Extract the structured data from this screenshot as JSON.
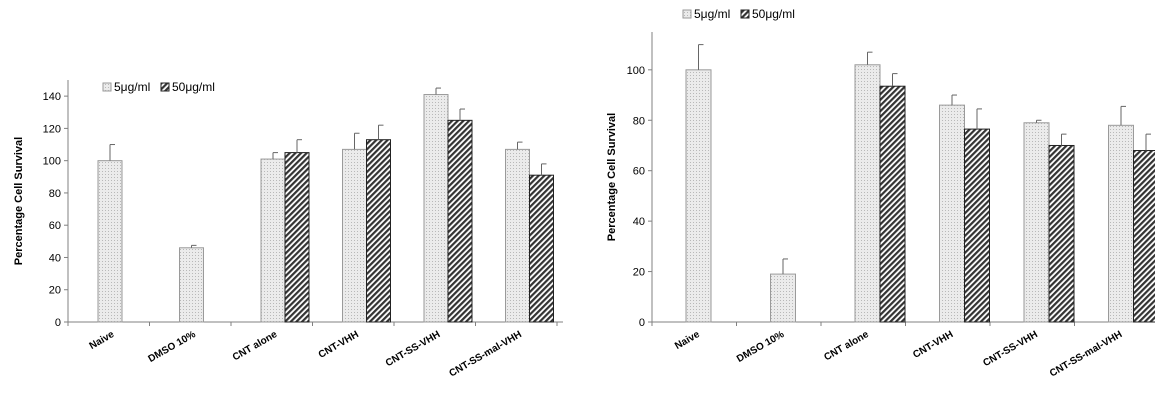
{
  "chart_data": [
    {
      "type": "bar",
      "title": "",
      "xlabel": "",
      "ylabel": "Percentage Cell Survival",
      "ylim": [
        0,
        150
      ],
      "yticks": [
        0,
        20,
        40,
        60,
        80,
        100,
        120,
        140
      ],
      "categories": [
        "Naive",
        "DMSO 10%",
        "CNT alone",
        "CNT-VHH",
        "CNT-SS-VHH",
        "CNT-SS-mal-VHH"
      ],
      "legend_position": "top-left",
      "series": [
        {
          "name": "5μg/ml",
          "pattern": "light-dotted",
          "values": [
            100,
            46,
            101,
            107,
            141,
            107
          ],
          "errors": [
            10,
            1.5,
            4,
            10,
            4,
            4.5
          ]
        },
        {
          "name": "50μg/ml",
          "pattern": "dark-diagonal-hatch",
          "values": [
            null,
            null,
            105,
            113,
            125,
            91
          ],
          "errors": [
            null,
            null,
            8,
            9,
            7,
            7
          ]
        }
      ]
    },
    {
      "type": "bar",
      "title": "",
      "xlabel": "",
      "ylabel": "Percentage Cell Survival",
      "ylim": [
        0,
        115
      ],
      "yticks": [
        0,
        20,
        40,
        60,
        80,
        100
      ],
      "categories": [
        "Naive",
        "DMSO 10%",
        "CNT alone",
        "CNT-VHH",
        "CNT-SS-VHH",
        "CNT-SS-mal-VHH"
      ],
      "legend_position": "top-left",
      "series": [
        {
          "name": "5μg/ml",
          "pattern": "light-dotted",
          "values": [
            100,
            19,
            102,
            86,
            79,
            78
          ],
          "errors": [
            10,
            6,
            5,
            4,
            1,
            7.5
          ]
        },
        {
          "name": "50μg/ml",
          "pattern": "dark-diagonal-hatch",
          "values": [
            null,
            null,
            93.5,
            76.5,
            70,
            68
          ],
          "errors": [
            null,
            null,
            5,
            8,
            4.5,
            6.5
          ]
        }
      ]
    }
  ]
}
